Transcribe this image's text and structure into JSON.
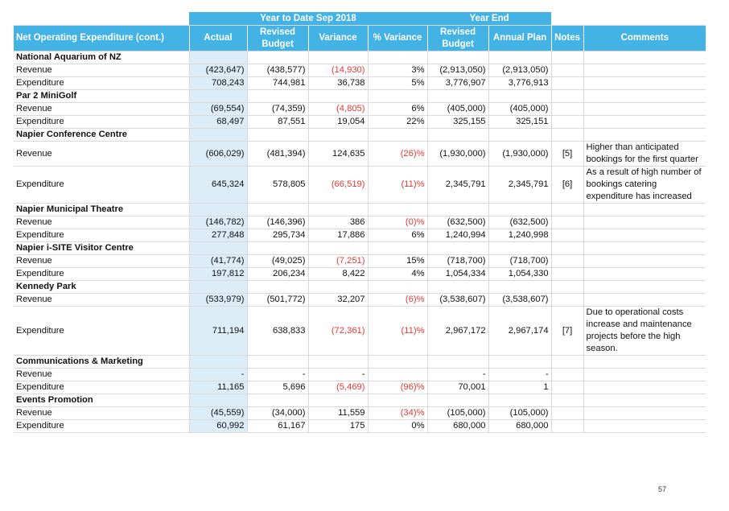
{
  "header": {
    "group_ytd": "Year to Date Sep 2018",
    "group_ye": "Year End",
    "columns": [
      "Net Operating Expenditure (cont.)",
      "Actual",
      "Revised Budget",
      "Variance",
      "% Variance",
      "Revised Budget",
      "Annual Plan",
      "Notes",
      "Comments"
    ]
  },
  "rows": [
    {
      "type": "section",
      "label": "National Aquarium of NZ"
    },
    {
      "type": "data",
      "label": "Revenue",
      "actual": "(423,647)",
      "budget": "(438,577)",
      "variance": "(14,930)",
      "pct": "3%",
      "ye_budget": "(2,913,050)",
      "annual": "(2,913,050)",
      "note": "",
      "comment": ""
    },
    {
      "type": "data",
      "label": "Expenditure",
      "actual": "708,243",
      "budget": "744,981",
      "variance": "36,738",
      "pct": "5%",
      "ye_budget": "3,776,907",
      "annual": "3,776,913",
      "note": "",
      "comment": ""
    },
    {
      "type": "section",
      "label": "Par 2 MiniGolf"
    },
    {
      "type": "data",
      "label": "Revenue",
      "actual": "(69,554)",
      "budget": "(74,359)",
      "variance": "(4,805)",
      "pct": "6%",
      "ye_budget": "(405,000)",
      "annual": "(405,000)",
      "note": "",
      "comment": ""
    },
    {
      "type": "data",
      "label": "Expenditure",
      "actual": "68,497",
      "budget": "87,551",
      "variance": "19,054",
      "pct": "22%",
      "ye_budget": "325,155",
      "annual": "325,151",
      "note": "",
      "comment": ""
    },
    {
      "type": "section",
      "label": "Napier Conference Centre"
    },
    {
      "type": "data",
      "label": "Revenue",
      "actual": "(606,029)",
      "budget": "(481,394)",
      "variance": "124,635",
      "pct": "(26)%",
      "ye_budget": "(1,930,000)",
      "annual": "(1,930,000)",
      "note": "[5]",
      "comment": "Higher than anticipated bookings for the first quarter"
    },
    {
      "type": "data",
      "label": "Expenditure",
      "actual": "645,324",
      "budget": "578,805",
      "variance": "(66,519)",
      "pct": "(11)%",
      "ye_budget": "2,345,791",
      "annual": "2,345,791",
      "note": "[6]",
      "comment": "As a result of high number of bookings catering expenditure has increased"
    },
    {
      "type": "section",
      "label": "Napier Municipal Theatre"
    },
    {
      "type": "data",
      "label": "Revenue",
      "actual": "(146,782)",
      "budget": "(146,396)",
      "variance": "386",
      "pct": "(0)%",
      "ye_budget": "(632,500)",
      "annual": "(632,500)",
      "note": "",
      "comment": ""
    },
    {
      "type": "data",
      "label": "Expenditure",
      "actual": "277,848",
      "budget": "295,734",
      "variance": "17,886",
      "pct": "6%",
      "ye_budget": "1,240,994",
      "annual": "1,240,998",
      "note": "",
      "comment": ""
    },
    {
      "type": "section",
      "label": "Napier i-SITE Visitor Centre"
    },
    {
      "type": "data",
      "label": "Revenue",
      "actual": "(41,774)",
      "budget": "(49,025)",
      "variance": "(7,251)",
      "pct": "15%",
      "ye_budget": "(718,700)",
      "annual": "(718,700)",
      "note": "",
      "comment": ""
    },
    {
      "type": "data",
      "label": "Expenditure",
      "actual": "197,812",
      "budget": "206,234",
      "variance": "8,422",
      "pct": "4%",
      "ye_budget": "1,054,334",
      "annual": "1,054,330",
      "note": "",
      "comment": ""
    },
    {
      "type": "section",
      "label": "Kennedy Park"
    },
    {
      "type": "data",
      "label": "Revenue",
      "actual": "(533,979)",
      "budget": "(501,772)",
      "variance": "32,207",
      "pct": "(6)%",
      "ye_budget": "(3,538,607)",
      "annual": "(3,538,607)",
      "note": "",
      "comment": ""
    },
    {
      "type": "data",
      "label": "Expenditure",
      "actual": "711,194",
      "budget": "638,833",
      "variance": "(72,361)",
      "pct": "(11)%",
      "ye_budget": "2,967,172",
      "annual": "2,967,174",
      "note": "[7]",
      "comment": "Due to operational costs increase and maintenance projects before the high season."
    },
    {
      "type": "section",
      "label": "Communications & Marketing"
    },
    {
      "type": "data",
      "label": "Revenue",
      "actual": "-",
      "budget": "-",
      "variance": "-",
      "pct": "",
      "ye_budget": "-",
      "annual": "-",
      "note": "",
      "comment": ""
    },
    {
      "type": "data",
      "label": "Expenditure",
      "actual": "11,165",
      "budget": "5,696",
      "variance": "(5,469)",
      "pct": "(96)%",
      "ye_budget": "70,001",
      "annual": "1",
      "note": "",
      "comment": ""
    },
    {
      "type": "section",
      "label": "Events Promotion"
    },
    {
      "type": "data",
      "label": "Revenue",
      "actual": "(45,559)",
      "budget": "(34,000)",
      "variance": "11,559",
      "pct": "(34)%",
      "ye_budget": "(105,000)",
      "annual": "(105,000)",
      "note": "",
      "comment": ""
    },
    {
      "type": "data",
      "label": "Expenditure",
      "actual": "60,992",
      "budget": "61,167",
      "variance": "175",
      "pct": "0%",
      "ye_budget": "680,000",
      "annual": "680,000",
      "note": "",
      "comment": ""
    }
  ],
  "colors": {
    "header": "#43b2e4",
    "actual_column": "#dcedf8",
    "negative_variance": "#e53935"
  },
  "page_number": "57"
}
